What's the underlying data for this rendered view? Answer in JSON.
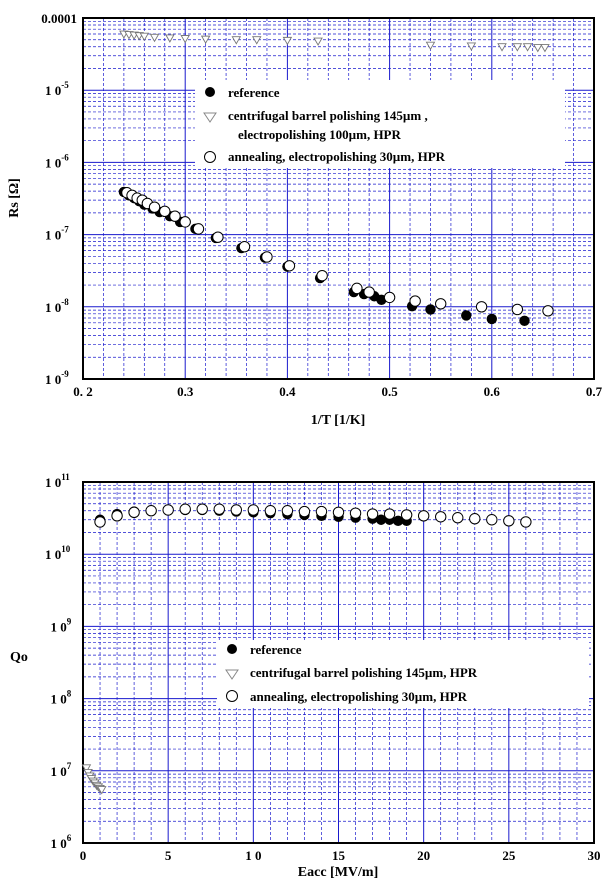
{
  "chart_data": [
    {
      "type": "scatter",
      "xlabel": "1/T [1/K]",
      "ylabel": "Rs [Ω]",
      "yscale": "log",
      "xlim": [
        0.2,
        0.7
      ],
      "ylim": [
        1e-09,
        0.0001
      ],
      "x_ticks": [
        "0. 2",
        "0.3",
        "0.4",
        "0.5",
        "0.6",
        "0.7"
      ],
      "y_ticks": [
        {
          "base": "1 0",
          "exp": "-9"
        },
        {
          "base": "1 0",
          "exp": "-8"
        },
        {
          "base": "1 0",
          "exp": "-7"
        },
        {
          "base": "1 0",
          "exp": "-6"
        },
        {
          "base": "1 0",
          "exp": "-5"
        },
        {
          "base": "0.0001",
          "exp": ""
        }
      ],
      "grid": true,
      "legend_position": "top-right",
      "series": [
        {
          "name": "reference",
          "marker": "filled-circle",
          "points": [
            [
              0.24,
              3.9e-07
            ],
            [
              0.245,
              3.5e-07
            ],
            [
              0.25,
              3.2e-07
            ],
            [
              0.255,
              2.9e-07
            ],
            [
              0.26,
              2.6e-07
            ],
            [
              0.268,
              2.3e-07
            ],
            [
              0.275,
              2.05e-07
            ],
            [
              0.285,
              1.8e-07
            ],
            [
              0.295,
              1.5e-07
            ],
            [
              0.31,
              1.2e-07
            ],
            [
              0.33,
              9e-08
            ],
            [
              0.355,
              6.5e-08
            ],
            [
              0.378,
              4.8e-08
            ],
            [
              0.4,
              3.6e-08
            ],
            [
              0.432,
              2.5e-08
            ],
            [
              0.465,
              1.6e-08
            ],
            [
              0.475,
              1.5e-08
            ],
            [
              0.485,
              1.4e-08
            ],
            [
              0.492,
              1.25e-08
            ],
            [
              0.522,
              1.02e-08
            ],
            [
              0.54,
              9.2e-09
            ],
            [
              0.575,
              7.6e-09
            ],
            [
              0.6,
              6.8e-09
            ],
            [
              0.632,
              6.4e-09
            ]
          ]
        },
        {
          "name": "centrifugal barrel polishing 145µm ,\nelectropolishing 100µm, HPR",
          "label_lines": [
            "centrifugal barrel polishing 145µm ,",
            "electropolishing 100µm, HPR"
          ],
          "marker": "open-triangle-down",
          "points": [
            [
              0.24,
              6e-05
            ],
            [
              0.245,
              5.9e-05
            ],
            [
              0.25,
              5.8e-05
            ],
            [
              0.255,
              5.7e-05
            ],
            [
              0.26,
              5.6e-05
            ],
            [
              0.27,
              5.4e-05
            ],
            [
              0.285,
              5.3e-05
            ],
            [
              0.3,
              5.2e-05
            ],
            [
              0.32,
              5.1e-05
            ],
            [
              0.35,
              5e-05
            ],
            [
              0.37,
              5e-05
            ],
            [
              0.4,
              4.9e-05
            ],
            [
              0.43,
              4.8e-05
            ],
            [
              0.54,
              4.2e-05
            ],
            [
              0.58,
              4.1e-05
            ],
            [
              0.61,
              4e-05
            ],
            [
              0.625,
              4e-05
            ],
            [
              0.635,
              4e-05
            ],
            [
              0.645,
              3.9e-05
            ],
            [
              0.652,
              3.9e-05
            ]
          ]
        },
        {
          "name": "annealing, electropolishing 30µm, HPR",
          "marker": "open-circle",
          "points": [
            [
              0.243,
              3.8e-07
            ],
            [
              0.248,
              3.5e-07
            ],
            [
              0.253,
              3.2e-07
            ],
            [
              0.258,
              3e-07
            ],
            [
              0.263,
              2.7e-07
            ],
            [
              0.27,
              2.4e-07
            ],
            [
              0.28,
              2.1e-07
            ],
            [
              0.29,
              1.8e-07
            ],
            [
              0.3,
              1.5e-07
            ],
            [
              0.313,
              1.2e-07
            ],
            [
              0.332,
              9.2e-08
            ],
            [
              0.358,
              6.8e-08
            ],
            [
              0.38,
              4.9e-08
            ],
            [
              0.402,
              3.7e-08
            ],
            [
              0.434,
              2.7e-08
            ],
            [
              0.468,
              1.8e-08
            ],
            [
              0.48,
              1.6e-08
            ],
            [
              0.5,
              1.35e-08
            ],
            [
              0.525,
              1.2e-08
            ],
            [
              0.55,
              1.1e-08
            ],
            [
              0.59,
              1e-08
            ],
            [
              0.625,
              9.2e-09
            ],
            [
              0.655,
              8.8e-09
            ]
          ]
        }
      ]
    },
    {
      "type": "scatter",
      "xlabel": "Eacc [MV/m]",
      "ylabel": "Qo",
      "yscale": "log",
      "xlim": [
        0,
        30
      ],
      "ylim": [
        1000000.0,
        100000000000.0
      ],
      "x_ticks": [
        "0",
        "5",
        "1 0",
        "15",
        "20",
        "25",
        "30"
      ],
      "y_ticks": [
        {
          "base": "1 0",
          "exp": "6"
        },
        {
          "base": "1 0",
          "exp": "7"
        },
        {
          "base": "1 0",
          "exp": "8"
        },
        {
          "base": "1 0",
          "exp": "9"
        },
        {
          "base": "1 0",
          "exp": "10"
        },
        {
          "base": "1 0",
          "exp": "11"
        }
      ],
      "grid": true,
      "legend_position": "bottom-right",
      "series": [
        {
          "name": "reference",
          "marker": "filled-circle",
          "points": [
            [
              1,
              30000000000.0
            ],
            [
              2,
              36000000000.0
            ],
            [
              3,
              39000000000.0
            ],
            [
              4,
              40000000000.0
            ],
            [
              5,
              41000000000.0
            ],
            [
              6,
              41000000000.0
            ],
            [
              7,
              41000000000.0
            ],
            [
              8,
              40000000000.0
            ],
            [
              9,
              39000000000.0
            ],
            [
              10,
              38000000000.0
            ],
            [
              11,
              37000000000.0
            ],
            [
              12,
              36000000000.0
            ],
            [
              13,
              35000000000.0
            ],
            [
              14,
              34000000000.0
            ],
            [
              15,
              33000000000.0
            ],
            [
              16,
              32000000000.0
            ],
            [
              17,
              31000000000.0
            ],
            [
              17.5,
              30000000000.0
            ],
            [
              18,
              30000000000.0
            ],
            [
              18.5,
              29000000000.0
            ],
            [
              19,
              29000000000.0
            ]
          ]
        },
        {
          "name": "centrifugal barrel polishing 145µm, HPR",
          "marker": "open-triangle-down",
          "points": [
            [
              0.2,
              11000000.0
            ],
            [
              0.3,
              9500000.0
            ],
            [
              0.4,
              8500000.0
            ],
            [
              0.5,
              7800000.0
            ],
            [
              0.6,
              7200000.0
            ],
            [
              0.7,
              6800000.0
            ],
            [
              0.8,
              6300000.0
            ],
            [
              0.9,
              6000000.0
            ],
            [
              1,
              5700000.0
            ],
            [
              1.1,
              5500000.0
            ]
          ]
        },
        {
          "name": "annealing, electropolishing 30µm, HPR",
          "marker": "open-circle",
          "points": [
            [
              1,
              28000000000.0
            ],
            [
              2,
              34000000000.0
            ],
            [
              3,
              38000000000.0
            ],
            [
              4,
              40000000000.0
            ],
            [
              5,
              41000000000.0
            ],
            [
              6,
              42000000000.0
            ],
            [
              7,
              42000000000.0
            ],
            [
              8,
              42000000000.0
            ],
            [
              9,
              41000000000.0
            ],
            [
              10,
              41000000000.0
            ],
            [
              11,
              40000000000.0
            ],
            [
              12,
              40000000000.0
            ],
            [
              13,
              39000000000.0
            ],
            [
              14,
              39000000000.0
            ],
            [
              15,
              38000000000.0
            ],
            [
              16,
              37000000000.0
            ],
            [
              17,
              36000000000.0
            ],
            [
              18,
              36000000000.0
            ],
            [
              19,
              35000000000.0
            ],
            [
              20,
              34000000000.0
            ],
            [
              21,
              33000000000.0
            ],
            [
              22,
              32000000000.0
            ],
            [
              23,
              31000000000.0
            ],
            [
              24,
              30000000000.0
            ],
            [
              25,
              29000000000.0
            ],
            [
              26,
              28000000000.0
            ]
          ]
        }
      ]
    }
  ]
}
